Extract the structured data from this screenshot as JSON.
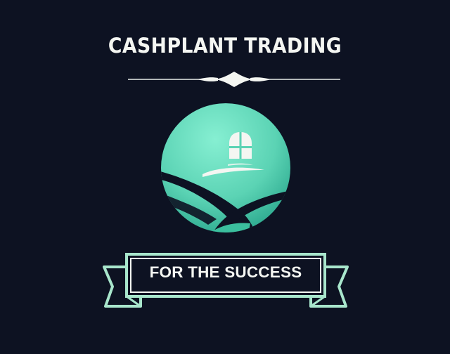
{
  "brand": {
    "title": "CASHPLANT TRADING",
    "tagline": "FOR THE SUCCESS"
  },
  "icons": {
    "divider": "ornamental-divider",
    "emblem": "house-window-field-emblem",
    "banner": "ribbon-banner"
  },
  "colors": {
    "background": "#0d1222",
    "text": "#f4f6f2",
    "accent_mint": "#a8e6cc",
    "emblem_light": "#6fe3c3",
    "emblem_dark": "#1e9d83"
  }
}
